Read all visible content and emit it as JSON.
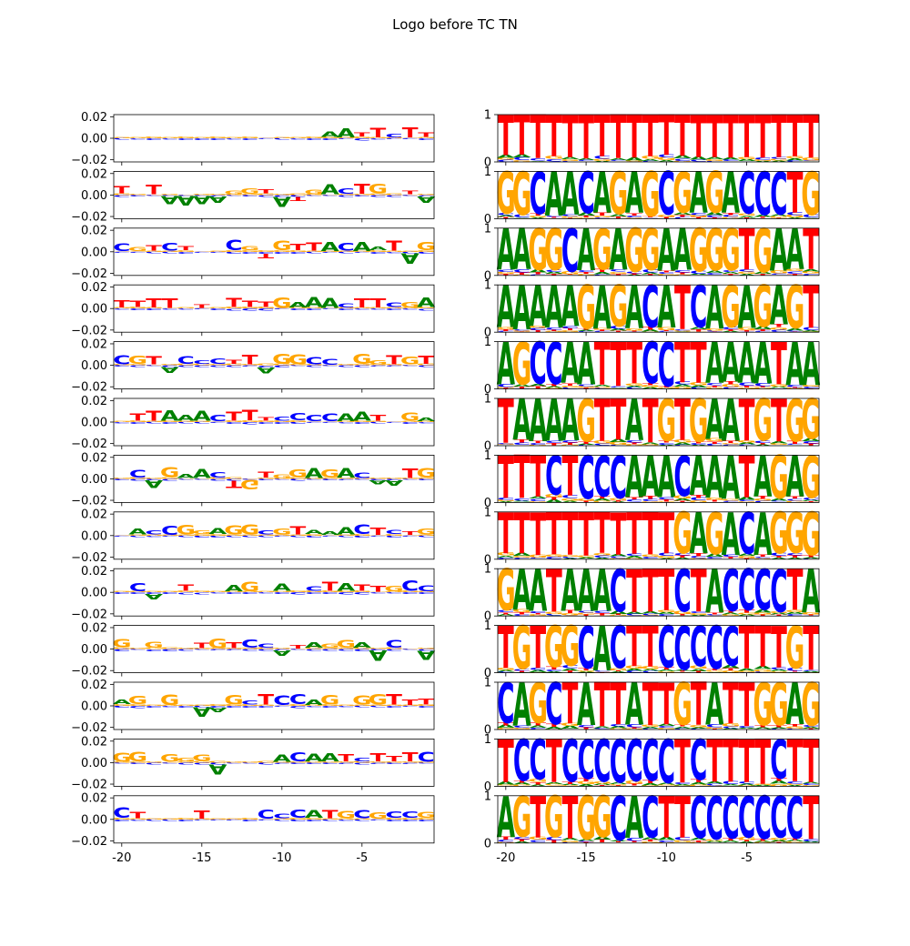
{
  "figure": {
    "title": "Logo before TC TN"
  },
  "colors": {
    "A": "#008000",
    "C": "#0000ff",
    "G": "#ffa500",
    "T": "#ff0000"
  },
  "chart_data": {
    "type": "sequence-logo-grid",
    "title": "Logo before TC TN",
    "x_positions": [
      -20,
      -19,
      -18,
      -17,
      -16,
      -15,
      -14,
      -13,
      -12,
      -11,
      -10,
      -9,
      -8,
      -7,
      -6,
      -5,
      -4,
      -3,
      -2,
      -1
    ],
    "x_ticks": [
      -20,
      -15,
      -10,
      -5
    ],
    "x_tick_labels": [
      "-20",
      "-15",
      "-10",
      "-5"
    ],
    "left_column": {
      "description": "attribution logos",
      "ylim": [
        -0.022,
        0.022
      ],
      "y_ticks": [
        0.02,
        0.0,
        -0.02
      ],
      "y_tick_labels": [
        "0.02",
        "0.00",
        "−0.02"
      ]
    },
    "right_column": {
      "description": "probability logos",
      "ylim": [
        0,
        1
      ],
      "y_ticks": [
        1,
        0
      ],
      "y_tick_labels": [
        "1",
        "0"
      ]
    },
    "rows": [
      {
        "left": [
          "",
          "",
          "",
          "",
          "",
          "",
          "",
          "",
          "",
          "",
          "",
          "",
          "",
          "A",
          "A",
          "T",
          "T",
          "C",
          "T",
          "T"
        ],
        "right": [
          "T",
          "T",
          "T",
          "T",
          "T",
          "T",
          "T",
          "T",
          "T",
          "T",
          "T",
          "T",
          "T",
          "T",
          "T",
          "T",
          "T",
          "T",
          "T",
          "T"
        ]
      },
      {
        "left": [
          "T",
          "",
          "T",
          "V",
          "V",
          "V",
          "V",
          "G",
          "G",
          "T",
          "V",
          "I",
          "G",
          "A",
          "C",
          "T",
          "G",
          "",
          "T",
          "V"
        ],
        "right": [
          "G",
          "G",
          "C",
          "A",
          "A",
          "C",
          "A",
          "G",
          "A",
          "G",
          "C",
          "G",
          "A",
          "G",
          "A",
          "C",
          "C",
          "C",
          "T",
          "G"
        ]
      },
      {
        "left": [
          "C",
          "G",
          "T",
          "C",
          "T",
          "",
          "",
          "C",
          "G",
          "I",
          "G",
          "T",
          "T",
          "A",
          "C",
          "A",
          "A",
          "T",
          "V",
          "G"
        ],
        "right": [
          "A",
          "A",
          "G",
          "G",
          "C",
          "A",
          "G",
          "A",
          "G",
          "G",
          "A",
          "A",
          "G",
          "G",
          "G",
          "T",
          "G",
          "A",
          "A",
          "T"
        ]
      },
      {
        "left": [
          "T",
          "T",
          "T",
          "T",
          "",
          "T",
          "",
          "T",
          "T",
          "T",
          "G",
          "A",
          "A",
          "A",
          "C",
          "T",
          "T",
          "C",
          "G",
          "A"
        ],
        "right": [
          "A",
          "A",
          "A",
          "A",
          "A",
          "G",
          "A",
          "G",
          "A",
          "C",
          "A",
          "T",
          "C",
          "A",
          "G",
          "A",
          "G",
          "A",
          "G",
          "T"
        ]
      },
      {
        "left": [
          "C",
          "G",
          "T",
          "V",
          "C",
          "C",
          "C",
          "T",
          "T",
          "V",
          "G",
          "G",
          "C",
          "C",
          "",
          "G",
          "G",
          "T",
          "G",
          "T"
        ],
        "right": [
          "A",
          "G",
          "C",
          "C",
          "A",
          "A",
          "T",
          "T",
          "T",
          "C",
          "C",
          "T",
          "T",
          "A",
          "A",
          "A",
          "A",
          "T",
          "A",
          "A"
        ]
      },
      {
        "left": [
          "",
          "T",
          "T",
          "A",
          "A",
          "A",
          "C",
          "T",
          "T",
          "T",
          "C",
          "C",
          "C",
          "C",
          "A",
          "A",
          "T",
          "",
          "G",
          "A"
        ],
        "right": [
          "T",
          "A",
          "A",
          "A",
          "A",
          "G",
          "T",
          "T",
          "A",
          "T",
          "G",
          "T",
          "G",
          "A",
          "A",
          "T",
          "G",
          "T",
          "G",
          "G"
        ]
      },
      {
        "left": [
          "",
          "C",
          "V",
          "G",
          "A",
          "A",
          "C",
          "I",
          "Y",
          "T",
          "G",
          "G",
          "A",
          "G",
          "A",
          "C",
          "V",
          "V",
          "T",
          "G"
        ],
        "right": [
          "T",
          "T",
          "T",
          "C",
          "T",
          "C",
          "C",
          "C",
          "A",
          "A",
          "A",
          "C",
          "A",
          "A",
          "A",
          "T",
          "A",
          "G",
          "A",
          "G"
        ]
      },
      {
        "left": [
          "",
          "A",
          "C",
          "C",
          "G",
          "G",
          "A",
          "G",
          "G",
          "C",
          "G",
          "T",
          "A",
          "A",
          "A",
          "C",
          "T",
          "C",
          "T",
          "G"
        ],
        "right": [
          "T",
          "T",
          "T",
          "T",
          "T",
          "T",
          "T",
          "T",
          "T",
          "T",
          "T",
          "G",
          "A",
          "G",
          "A",
          "C",
          "A",
          "G",
          "G",
          "G"
        ]
      },
      {
        "left": [
          "",
          "C",
          "V",
          "",
          "T",
          "",
          "",
          "A",
          "G",
          "",
          "A",
          "",
          "C",
          "T",
          "A",
          "T",
          "T",
          "G",
          "C",
          "C"
        ],
        "right": [
          "G",
          "A",
          "A",
          "T",
          "A",
          "A",
          "A",
          "C",
          "T",
          "T",
          "T",
          "C",
          "T",
          "A",
          "C",
          "C",
          "C",
          "C",
          "T",
          "A"
        ]
      },
      {
        "left": [
          "G",
          "",
          "G",
          "",
          "",
          "T",
          "G",
          "T",
          "C",
          "C",
          "V",
          "T",
          "A",
          "G",
          "G",
          "A",
          "V",
          "C",
          "",
          "V"
        ],
        "right": [
          "T",
          "G",
          "T",
          "G",
          "G",
          "C",
          "A",
          "C",
          "T",
          "T",
          "C",
          "C",
          "C",
          "C",
          "C",
          "T",
          "T",
          "T",
          "G",
          "T"
        ]
      },
      {
        "left": [
          "A",
          "G",
          "",
          "G",
          "",
          "V",
          "V",
          "G",
          "C",
          "T",
          "C",
          "C",
          "A",
          "G",
          "",
          "G",
          "G",
          "T",
          "T",
          "T"
        ],
        "right": [
          "C",
          "A",
          "G",
          "C",
          "T",
          "A",
          "T",
          "T",
          "A",
          "T",
          "T",
          "G",
          "T",
          "A",
          "T",
          "T",
          "G",
          "G",
          "A",
          "G"
        ]
      },
      {
        "left": [
          "G",
          "G",
          "",
          "G",
          "G",
          "G",
          "V",
          "",
          "",
          "",
          "A",
          "C",
          "A",
          "A",
          "T",
          "C",
          "T",
          "T",
          "T",
          "C"
        ],
        "right": [
          "T",
          "C",
          "C",
          "T",
          "C",
          "C",
          "C",
          "C",
          "C",
          "C",
          "C",
          "T",
          "C",
          "T",
          "T",
          "T",
          "T",
          "C",
          "T",
          "T"
        ]
      },
      {
        "left": [
          "C",
          "T",
          "",
          "",
          "",
          "T",
          "",
          "",
          "",
          "C",
          "C",
          "C",
          "A",
          "T",
          "G",
          "C",
          "G",
          "C",
          "C",
          "G"
        ],
        "right": [
          "A",
          "G",
          "T",
          "G",
          "T",
          "G",
          "G",
          "C",
          "A",
          "C",
          "T",
          "T",
          "C",
          "C",
          "C",
          "C",
          "C",
          "C",
          "C",
          "T"
        ]
      }
    ]
  }
}
